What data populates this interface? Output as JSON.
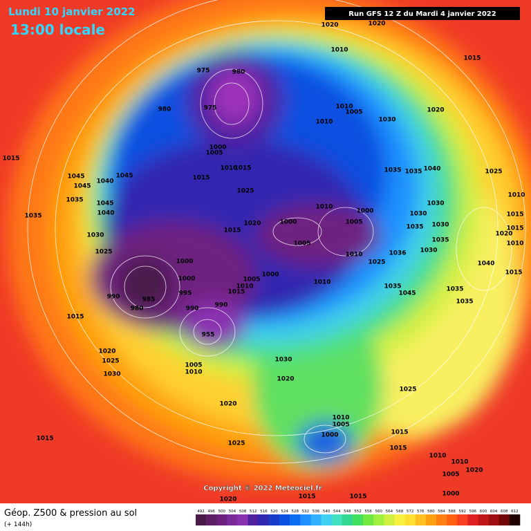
{
  "header": {
    "date": "Lundi 10 janvier 2022",
    "time": "13:00 locale",
    "run": "Run GFS 12 Z du Mardi 4 janvier 2022"
  },
  "map": {
    "copyright": "Copyright © 2022 Meteociel.fr",
    "isobar_labels": [
      1020,
      1020,
      1010,
      1015,
      980,
      975,
      980,
      975,
      1010,
      1005,
      1020,
      1030,
      1010,
      1000,
      1005,
      1015,
      1010,
      1015,
      1015,
      1025,
      1035,
      1035,
      1040,
      1025,
      1045,
      1045,
      1040,
      1045,
      1035,
      1045,
      1040,
      1035,
      1010,
      1000,
      1005,
      1000,
      1020,
      1015,
      1030,
      1030,
      1030,
      1035,
      1030,
      1035,
      1020,
      1010,
      1015,
      1015,
      1010,
      1005,
      1025,
      1036,
      1030,
      1010,
      1025,
      1000,
      1040,
      1015,
      1000,
      1005,
      1000,
      1010,
      1035,
      1045,
      1035,
      995,
      1010,
      1015,
      990,
      985,
      980,
      1035,
      990,
      990,
      1015,
      955,
      1020,
      1025,
      1030,
      1005,
      1010,
      1030,
      1020,
      1025,
      1020,
      1015,
      1010,
      1005,
      1000,
      1015,
      1025,
      1015,
      1010,
      1010,
      1020,
      1005,
      1000,
      1015,
      1015,
      1020
    ]
  },
  "legend": {
    "title": "Géop. Z500 & pression au sol",
    "lead": "(+ 144h)",
    "scale": [
      492,
      496,
      500,
      504,
      508,
      512,
      516,
      520,
      524,
      528,
      532,
      536,
      540,
      544,
      548,
      552,
      556,
      560,
      564,
      568,
      572,
      576,
      580,
      584,
      588,
      592,
      596,
      600,
      604,
      608,
      612
    ],
    "colors": [
      "#4a1a4a",
      "#5c1f66",
      "#6e2080",
      "#7a2a99",
      "#8a32b0",
      "#5020a0",
      "#3028b0",
      "#1a3ac8",
      "#0a50e0",
      "#0a6cf0",
      "#1e90ff",
      "#30b0ff",
      "#40d0f0",
      "#40e0c0",
      "#30d890",
      "#40e060",
      "#70e840",
      "#a0f040",
      "#d0f040",
      "#f8f040",
      "#ffe030",
      "#ffc020",
      "#ffa010",
      "#ff8010",
      "#ff6010",
      "#f84020",
      "#e02020",
      "#c01818",
      "#a01010",
      "#700808",
      "#200000"
    ]
  }
}
